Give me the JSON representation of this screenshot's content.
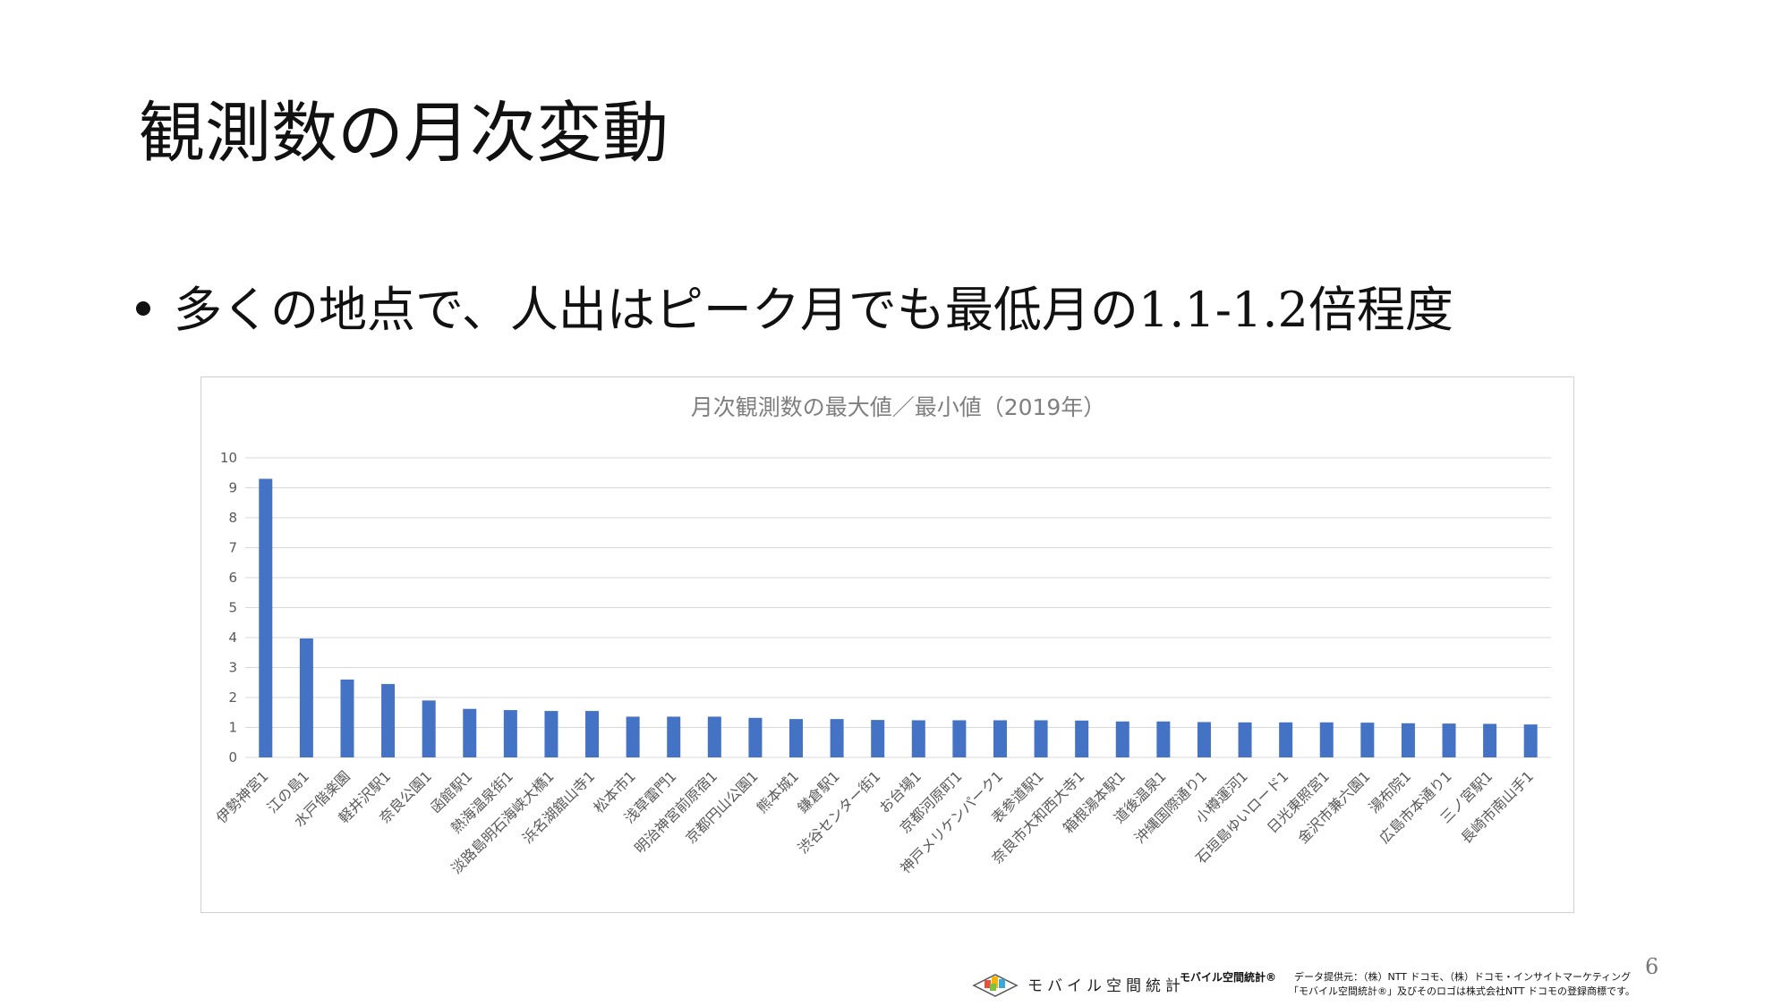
{
  "slide": {
    "title": "観測数の月次変動",
    "bullet": "多くの地点で、人出はピーク月でも最低月の1.1-1.2倍程度",
    "page_number": "6"
  },
  "footer": {
    "logo_text": "モバイル空間統計",
    "brand": "モバイル空間統計®",
    "credit_line1": "データ提供元：（株）NTT ドコモ、（株）ドコモ・インサイトマーケティング",
    "credit_line2": "「モバイル空間統計®」及びそのロゴは株式会社NTT ドコモの登録商標です。"
  },
  "chart_data": {
    "type": "bar",
    "title": "月次観測数の最大値／最小値（2019年）",
    "xlabel": "",
    "ylabel": "",
    "ylim": [
      0,
      10
    ],
    "yticks": [
      0,
      1,
      2,
      3,
      4,
      5,
      6,
      7,
      8,
      9,
      10
    ],
    "grid": true,
    "legend": "none",
    "bar_color": "#4472C4",
    "categories": [
      "伊勢神宮1",
      "江の島1",
      "水戸偕楽園",
      "軽井沢駅1",
      "奈良公園1",
      "函館駅1",
      "熱海温泉街1",
      "淡路島明石海峡大橋1",
      "浜名湖舘山寺1",
      "松本市1",
      "浅草雷門1",
      "明治神宮前原宿1",
      "京都円山公園1",
      "熊本城1",
      "鎌倉駅1",
      "渋谷センター街1",
      "お台場1",
      "京都河原町1",
      "神戸メリケンパーク1",
      "表参道駅1",
      "奈良市大和西大寺1",
      "箱根湯本駅1",
      "道後温泉1",
      "沖縄国際通り1",
      "小樽運河1",
      "石垣島ゆいロード1",
      "日光東照宮1",
      "金沢市兼六園1",
      "湯布院1",
      "広島市本通り1",
      "三ノ宮駅1",
      "長崎市南山手1"
    ],
    "values": [
      9.3,
      3.97,
      2.6,
      2.45,
      1.9,
      1.62,
      1.58,
      1.55,
      1.55,
      1.36,
      1.36,
      1.36,
      1.32,
      1.28,
      1.28,
      1.25,
      1.24,
      1.24,
      1.24,
      1.24,
      1.23,
      1.2,
      1.2,
      1.18,
      1.17,
      1.17,
      1.17,
      1.16,
      1.14,
      1.13,
      1.12,
      1.1
    ]
  }
}
